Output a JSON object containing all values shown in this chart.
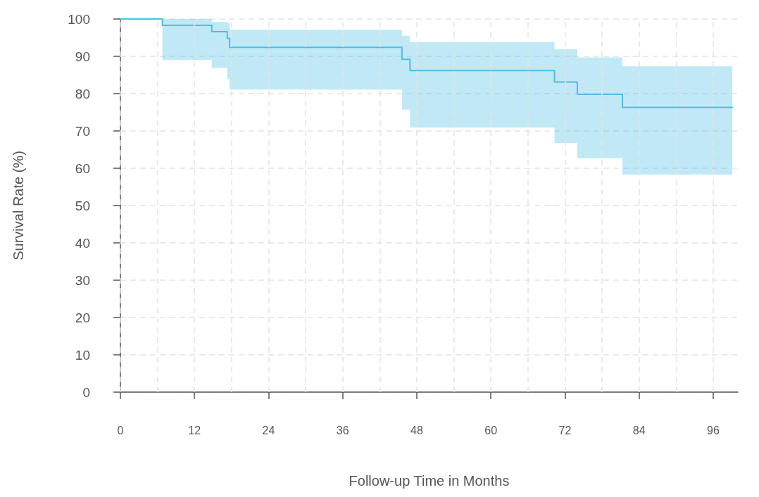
{
  "chart_data": {
    "type": "step",
    "xlabel": "Follow-up Time in Months",
    "ylabel": "Survival Rate (%)",
    "series": [
      {
        "color": "#4bbfe3",
        "x": [
          0,
          6.8,
          14.8,
          17.3,
          17.7,
          45.6,
          46.9,
          70.3,
          74,
          81.3,
          99.1
        ],
        "values": [
          100,
          98.3,
          96.6,
          94.8,
          92.4,
          89.2,
          86.2,
          83.1,
          79.8,
          76.3,
          76.3
        ],
        "lower": [
          100,
          89,
          86.9,
          83.9,
          81.1,
          75.7,
          70.9,
          66.8,
          62.7,
          58.3,
          58.3
        ],
        "upper": [
          100,
          100,
          99.2,
          99,
          97.1,
          95.5,
          93.8,
          91.9,
          89.7,
          87.3,
          87.3
        ]
      }
    ],
    "xlim": [
      0,
      100
    ],
    "xticks": [
      0,
      {
        "value": 6,
        "label": null
      },
      12,
      {
        "value": 18,
        "label": null
      },
      24,
      {
        "value": 30,
        "label": null
      },
      36,
      {
        "value": 42,
        "label": null
      },
      48,
      {
        "value": 54,
        "label": null
      },
      60,
      {
        "value": 66,
        "label": null
      },
      72,
      {
        "value": 78,
        "label": null
      },
      84,
      {
        "value": 90,
        "label": null
      },
      96
    ],
    "ylim": [
      0,
      100
    ],
    "yticks": [
      0,
      10,
      20,
      30,
      40,
      50,
      60,
      70,
      80,
      90,
      100
    ],
    "grid": true,
    "line_style": "solid",
    "marker": "none"
  }
}
